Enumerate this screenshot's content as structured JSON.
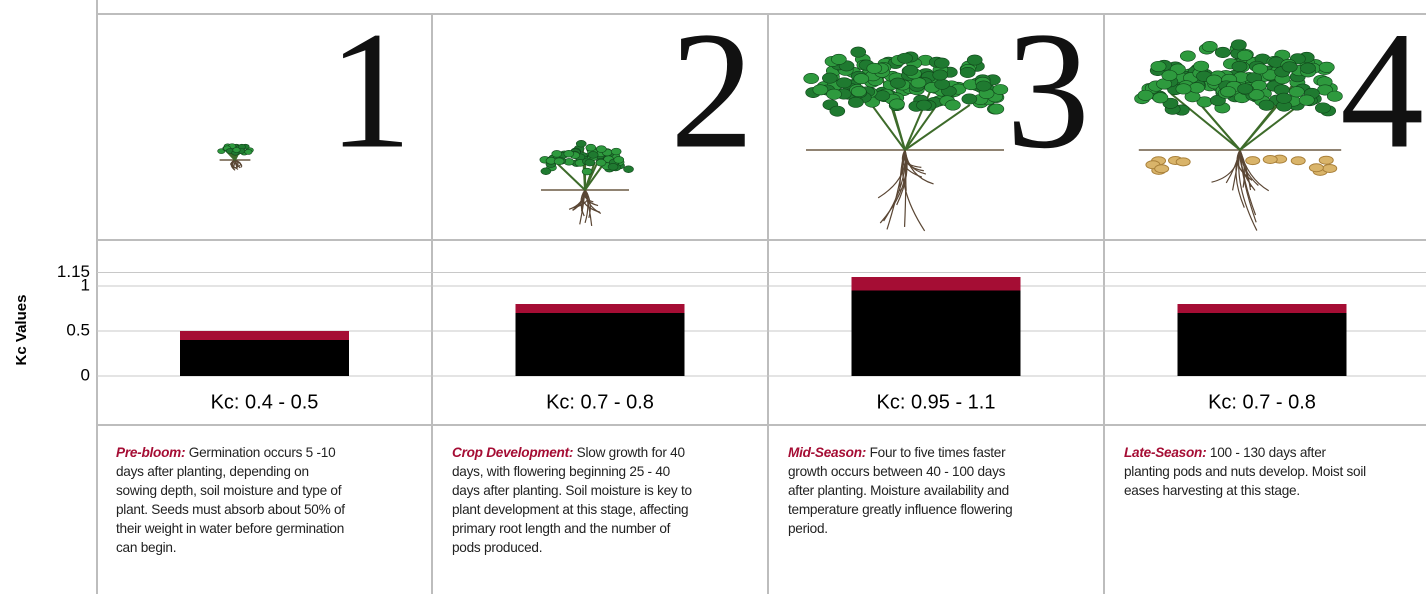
{
  "y_axis_label": "Kc Values",
  "chart_data": {
    "type": "range_bar",
    "categories": [
      "Kc: 0.4 - 0.5",
      "Kc: 0.7 - 0.8",
      "Kc: 0.95 - 1.1",
      "Kc: 0.7 - 0.8"
    ],
    "low": [
      0.4,
      0.7,
      0.95,
      0.7
    ],
    "high": [
      0.5,
      0.8,
      1.1,
      0.8
    ],
    "low_color": "#000000",
    "high_color": "#a50d34",
    "ylim": [
      0,
      1.15
    ],
    "yticks": [
      0,
      0.5,
      1,
      1.15
    ],
    "grid": true
  },
  "stages": [
    {
      "number": "1",
      "title": "Pre-bloom:",
      "text": "Germination occurs 5 -10 days after planting, depending on sowing depth, soil moisture and type of plant. Seeds must absorb about 50% of their weight in water before germination can begin."
    },
    {
      "number": "2",
      "title": "Crop Development:",
      "text": "Slow growth for 40 days, with flowering beginning 25 - 40 days after planting. Soil moisture is key to plant development at this stage, affecting primary root length and the number of pods produced."
    },
    {
      "number": "3",
      "title": "Mid-Season:",
      "text": "Four to five times faster growth occurs between 40 - 100 days after planting. Moisture availability and temperature greatly influence flowering period."
    },
    {
      "number": "4",
      "title": "Late-Season:",
      "text": "100 - 130 days after planting pods and nuts develop. Moist soil eases harvesting at this stage."
    }
  ]
}
